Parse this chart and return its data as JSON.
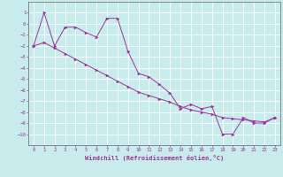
{
  "xlabel": "Windchill (Refroidissement éolien,°C)",
  "bg_color": "#c8ecec",
  "grid_color": "#ffffff",
  "line_color": "#993399",
  "line1_x": [
    0,
    1,
    2,
    3,
    4,
    5,
    6,
    7,
    8,
    9,
    10,
    11,
    12,
    13,
    14,
    15,
    16,
    17,
    18,
    19,
    20,
    21,
    22,
    23
  ],
  "line1_y": [
    -2,
    1,
    -2,
    -0.3,
    -0.3,
    -0.8,
    -1.2,
    0.5,
    0.5,
    -2.5,
    -4.5,
    -4.8,
    -5.5,
    -6.3,
    -7.7,
    -7.3,
    -7.7,
    -7.5,
    -10,
    -10,
    -8.5,
    -9,
    -9,
    -8.5
  ],
  "line2_x": [
    0,
    1,
    2,
    3,
    4,
    5,
    6,
    7,
    8,
    9,
    10,
    11,
    12,
    13,
    14,
    15,
    16,
    17,
    18,
    19,
    20,
    21,
    22,
    23
  ],
  "line2_y": [
    -2,
    -1.7,
    -2.2,
    -2.7,
    -3.2,
    -3.7,
    -4.2,
    -4.7,
    -5.2,
    -5.7,
    -6.2,
    -6.5,
    -6.8,
    -7.1,
    -7.5,
    -7.8,
    -8.0,
    -8.2,
    -8.5,
    -8.6,
    -8.7,
    -8.8,
    -8.9,
    -8.5
  ],
  "ylim": [
    -11,
    2
  ],
  "xlim": [
    -0.5,
    23.5
  ],
  "yticks": [
    1,
    0,
    -1,
    -2,
    -3,
    -4,
    -5,
    -6,
    -7,
    -8,
    -9,
    -10
  ],
  "xticks": [
    0,
    1,
    2,
    3,
    4,
    5,
    6,
    7,
    8,
    9,
    10,
    11,
    12,
    13,
    14,
    15,
    16,
    17,
    18,
    19,
    20,
    21,
    22,
    23
  ]
}
